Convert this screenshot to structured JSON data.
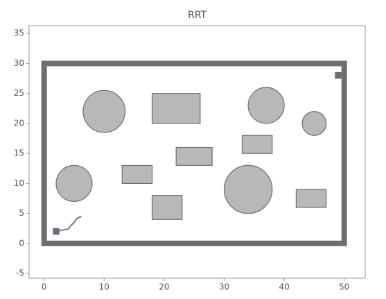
{
  "chart_data": {
    "type": "rrt",
    "title": "RRT",
    "xlim": [
      -2.5,
      53.5
    ],
    "ylim": [
      -5.8,
      36.3
    ],
    "xticks": [
      0,
      10,
      20,
      30,
      40,
      50
    ],
    "yticks": [
      -5,
      0,
      5,
      10,
      15,
      20,
      25,
      30,
      35
    ],
    "boundary": {
      "x": 0,
      "y": 0,
      "width": 50,
      "height": 30,
      "color": "#6e6e6e"
    },
    "obstacle_color": "#b8b8b8",
    "circles": [
      {
        "x": 10,
        "y": 22,
        "r": 3.5
      },
      {
        "x": 5,
        "y": 10,
        "r": 3
      },
      {
        "x": 37,
        "y": 23,
        "r": 3
      },
      {
        "x": 45,
        "y": 20,
        "r": 2
      },
      {
        "x": 34,
        "y": 9,
        "r": 4
      }
    ],
    "rectangles": [
      {
        "x": 18,
        "y": 20,
        "width": 8,
        "height": 5
      },
      {
        "x": 22,
        "y": 13,
        "width": 6,
        "height": 3
      },
      {
        "x": 13,
        "y": 10,
        "width": 5,
        "height": 3
      },
      {
        "x": 18,
        "y": 4,
        "width": 5,
        "height": 4
      },
      {
        "x": 33,
        "y": 15,
        "width": 5,
        "height": 3
      },
      {
        "x": 42,
        "y": 6,
        "width": 5,
        "height": 3
      }
    ],
    "path": {
      "x": [
        2,
        3,
        4,
        4.5,
        5,
        5.5,
        6.2
      ],
      "y": [
        2,
        2.2,
        2.4,
        3,
        3.5,
        4.2,
        4.5
      ],
      "color": "#777777"
    },
    "start": {
      "x": 2,
      "y": 2,
      "color": "#6b6b9a"
    },
    "goal": {
      "x": 49,
      "y": 28,
      "color": "#6e6e6e"
    }
  }
}
